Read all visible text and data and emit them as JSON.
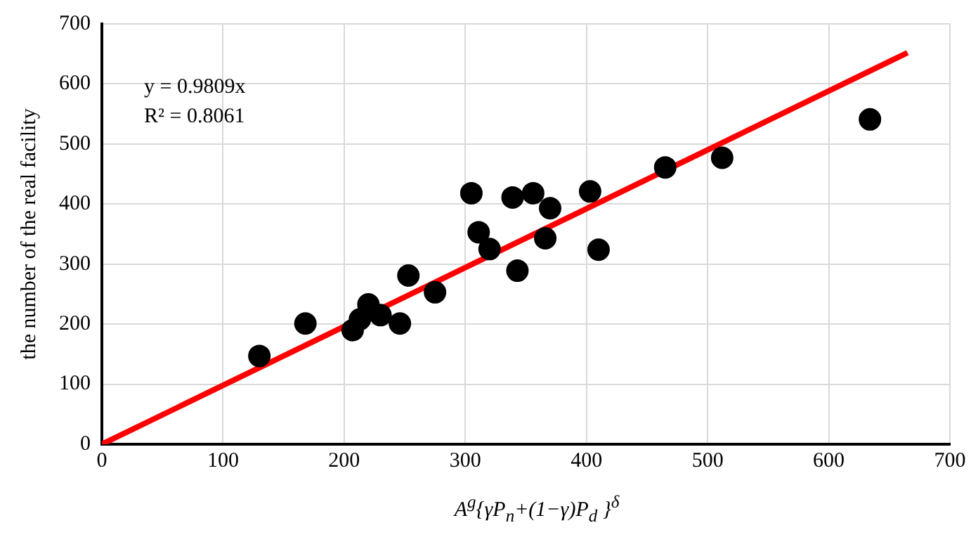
{
  "chart_data": {
    "type": "scatter",
    "xlabel": "A$^{g}${γP$_{n}$+(1−γ)P$_{d}$ }$^{δ}$",
    "ylabel": "the number of the real facility",
    "x": [
      130,
      168,
      207,
      213,
      220,
      230,
      246,
      253,
      275,
      305,
      311,
      320,
      339,
      343,
      356,
      366,
      370,
      403,
      410,
      465,
      512,
      634
    ],
    "series": [
      {
        "color": "#000000",
        "marker": "circle",
        "values": [
          147,
          201,
          190,
          208,
          233,
          215,
          201,
          281,
          253,
          418,
          353,
          325,
          411,
          289,
          418,
          343,
          393,
          421,
          324,
          461,
          477,
          541
        ]
      },
      {
        "type": "line",
        "color": "#ff0000",
        "x": [
          0,
          665
        ],
        "values": [
          0,
          652
        ]
      }
    ],
    "annotations": [
      "y = 0.9809x",
      "R² = 0.8061"
    ],
    "xlim": [
      0,
      700
    ],
    "xticks": [
      0,
      100,
      200,
      300,
      400,
      500,
      600,
      700
    ],
    "ylim": [
      0,
      700
    ],
    "yticks": [
      0,
      100,
      200,
      300,
      400,
      500,
      600,
      700
    ],
    "grid": true,
    "legend": false
  }
}
